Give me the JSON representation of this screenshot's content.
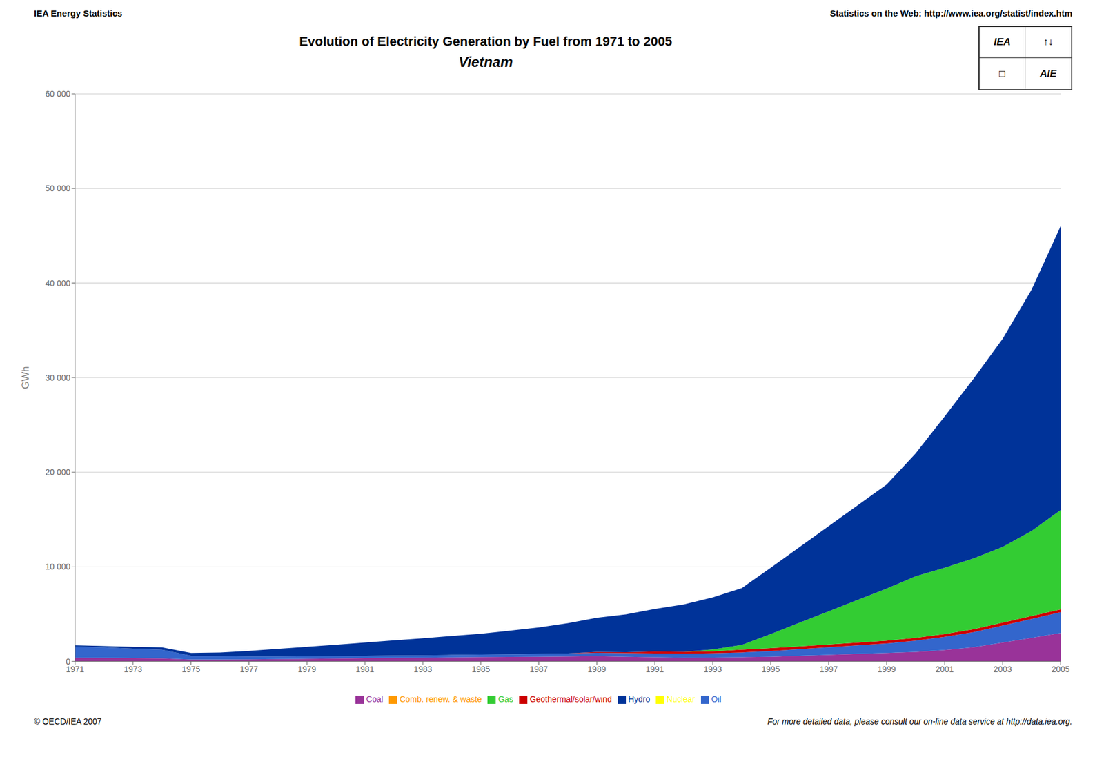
{
  "chart_data": {
    "type": "area",
    "stacked": true,
    "title": "Evolution of Electricity Generation by Fuel from 1971 to 2005",
    "subtitle": "Vietnam",
    "ylabel": "GWh",
    "annotations": [
      "IEA Energy Statistics",
      "Statistics on the Web: http://www.iea.org/statist/index.htm",
      "© OECD/IEA 2007",
      "For more detailed data, please consult our on-line data service at http://data.iea.org.",
      "IEA",
      "↑↓",
      "□",
      "AIE"
    ],
    "x": [
      1971,
      1972,
      1973,
      1974,
      1975,
      1976,
      1977,
      1978,
      1979,
      1980,
      1981,
      1982,
      1983,
      1984,
      1985,
      1986,
      1987,
      1988,
      1989,
      1990,
      1991,
      1992,
      1993,
      1994,
      1995,
      1996,
      1997,
      1998,
      1999,
      2000,
      2001,
      2002,
      2003,
      2004,
      2005
    ],
    "xlim": [
      1971,
      2005
    ],
    "xticks": [
      1971,
      1973,
      1975,
      1977,
      1979,
      1981,
      1983,
      1985,
      1987,
      1989,
      1991,
      1993,
      1995,
      1997,
      1999,
      2001,
      2003,
      2005
    ],
    "ylim": [
      0,
      60000
    ],
    "yticks": [
      0,
      {
        "value": 10000,
        "label": "10 000"
      },
      {
        "value": 20000,
        "label": "20 000"
      },
      {
        "value": 30000,
        "label": "30 000"
      },
      {
        "value": 40000,
        "label": "40 000"
      },
      {
        "value": 50000,
        "label": "50 000"
      },
      {
        "value": 60000,
        "label": "60 000"
      }
    ],
    "grid": true,
    "legend": "bottom",
    "series": [
      {
        "name": "Coal",
        "color": "#993399",
        "values": [
          400,
          380,
          350,
          330,
          200,
          200,
          220,
          250,
          270,
          300,
          350,
          380,
          400,
          430,
          460,
          480,
          500,
          530,
          560,
          500,
          450,
          400,
          420,
          450,
          500,
          600,
          700,
          800,
          900,
          1000,
          1200,
          1500,
          2000,
          2500,
          3000
        ]
      },
      {
        "name": "Oil",
        "color": "#3366CC",
        "values": [
          1200,
          1100,
          1000,
          900,
          400,
          350,
          300,
          280,
          270,
          260,
          250,
          250,
          250,
          260,
          270,
          280,
          300,
          320,
          350,
          380,
          400,
          420,
          450,
          500,
          600,
          700,
          800,
          900,
          1000,
          1200,
          1400,
          1600,
          1800,
          2000,
          2200
        ]
      },
      {
        "name": "Geothermal/solar/wind",
        "color": "#CC0000",
        "values": [
          0,
          0,
          0,
          0,
          0,
          0,
          0,
          0,
          0,
          0,
          0,
          0,
          0,
          0,
          0,
          0,
          0,
          0,
          100,
          100,
          200,
          200,
          200,
          300,
          300,
          300,
          300,
          300,
          300,
          300,
          300,
          300,
          300,
          300,
          300
        ]
      },
      {
        "name": "Comb. renew. & waste",
        "color": "#FF9900",
        "values": [
          0,
          0,
          0,
          0,
          0,
          0,
          0,
          0,
          0,
          0,
          0,
          0,
          0,
          0,
          0,
          0,
          0,
          0,
          0,
          0,
          0,
          0,
          0,
          0,
          0,
          0,
          0,
          0,
          0,
          0,
          0,
          0,
          0,
          0,
          0
        ]
      },
      {
        "name": "Gas",
        "color": "#33CC33",
        "values": [
          0,
          0,
          0,
          0,
          0,
          0,
          0,
          0,
          0,
          0,
          0,
          0,
          0,
          0,
          0,
          0,
          0,
          0,
          0,
          0,
          0,
          0,
          200,
          500,
          1500,
          2500,
          3500,
          4500,
          5500,
          6500,
          7000,
          7500,
          8000,
          9000,
          10500
        ]
      },
      {
        "name": "Nuclear",
        "color": "#FFFF00",
        "values": [
          0,
          0,
          0,
          0,
          0,
          0,
          0,
          0,
          0,
          0,
          0,
          0,
          0,
          0,
          0,
          0,
          0,
          0,
          0,
          0,
          0,
          0,
          0,
          0,
          0,
          0,
          0,
          0,
          0,
          0,
          0,
          0,
          0,
          0,
          0
        ]
      },
      {
        "name": "Hydro",
        "color": "#003399",
        "values": [
          100,
          150,
          200,
          250,
          300,
          400,
          600,
          800,
          1000,
          1200,
          1400,
          1600,
          1800,
          2000,
          2200,
          2500,
          2800,
          3200,
          3600,
          4000,
          4500,
          5000,
          5500,
          6000,
          7000,
          8000,
          9000,
          10000,
          11000,
          13000,
          16000,
          19000,
          22000,
          25500,
          30000
        ]
      }
    ]
  }
}
